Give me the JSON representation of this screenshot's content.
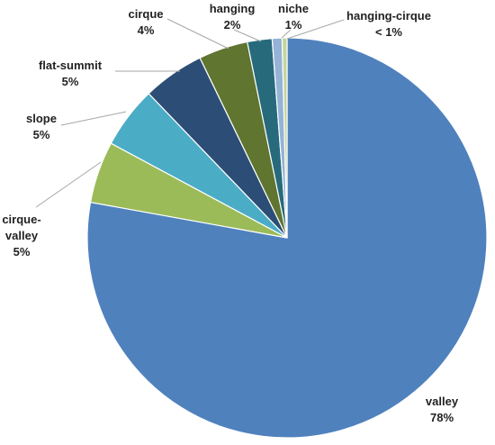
{
  "chart_data": {
    "type": "pie",
    "title": "",
    "slices": [
      {
        "label": "valley",
        "value": 78,
        "value_label": "78%",
        "color": "#4f81bd"
      },
      {
        "label": "cirque-valley",
        "value": 5,
        "value_label": "5%",
        "color": "#9bbb59"
      },
      {
        "label": "slope",
        "value": 5,
        "value_label": "5%",
        "color": "#4bacc6"
      },
      {
        "label": "flat-summit",
        "value": 5,
        "value_label": "5%",
        "color": "#2c4d75"
      },
      {
        "label": "cirque",
        "value": 4,
        "value_label": "4%",
        "color": "#5f7530"
      },
      {
        "label": "hanging",
        "value": 2,
        "value_label": "2%",
        "color": "#276a7c"
      },
      {
        "label": "niche",
        "value": 0.8,
        "value_label": "1%",
        "color": "#95b3d7"
      },
      {
        "label": "hanging-cirque",
        "value": 0.4,
        "value_label": "< 1%",
        "color": "#c3d69b"
      }
    ]
  }
}
